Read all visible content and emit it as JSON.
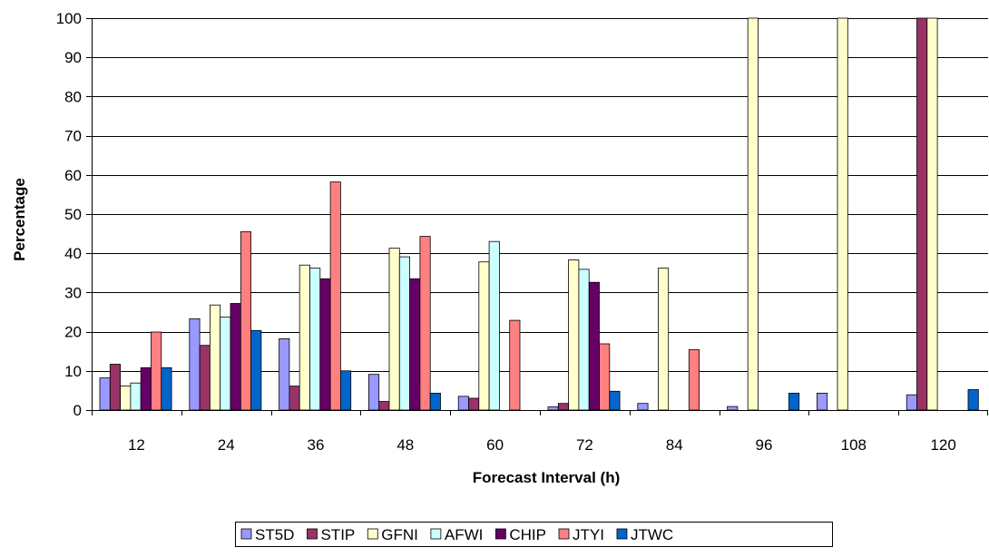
{
  "chart_data": {
    "type": "bar",
    "title": "",
    "xlabel": "Forecast Interval (h)",
    "ylabel": "Percentage",
    "ylim": [
      0,
      100
    ],
    "yticks": [
      0,
      10,
      20,
      30,
      40,
      50,
      60,
      70,
      80,
      90,
      100
    ],
    "grid": "horizontal",
    "legend_position": "bottom",
    "categories": [
      "12",
      "24",
      "36",
      "48",
      "60",
      "72",
      "84",
      "96",
      "108",
      "120"
    ],
    "series": [
      {
        "name": "ST5D",
        "color": "#9999ff",
        "values": [
          8.2,
          23.3,
          18.2,
          9.1,
          3.5,
          0.8,
          1.7,
          0.9,
          4.3,
          3.9
        ]
      },
      {
        "name": "STIP",
        "color": "#993366",
        "values": [
          11.7,
          16.5,
          6.1,
          2.2,
          3.0,
          1.7,
          0,
          0,
          0,
          100
        ]
      },
      {
        "name": "GFNI",
        "color": "#ffffcc",
        "values": [
          6.1,
          26.8,
          37.0,
          41.3,
          37.8,
          38.3,
          36.2,
          100,
          100,
          100
        ]
      },
      {
        "name": "AFWI",
        "color": "#ccffff",
        "values": [
          6.9,
          23.7,
          36.2,
          39.1,
          43.0,
          35.9,
          0,
          0,
          0,
          0
        ]
      },
      {
        "name": "CHIP",
        "color": "#660066",
        "values": [
          10.8,
          27.2,
          33.5,
          33.5,
          0,
          32.6,
          0,
          0,
          0,
          0
        ]
      },
      {
        "name": "JTYI",
        "color": "#ff8080",
        "values": [
          19.9,
          45.5,
          58.2,
          44.3,
          22.9,
          16.9,
          15.4,
          0,
          0,
          0
        ]
      },
      {
        "name": "JTWC",
        "color": "#0066cc",
        "values": [
          10.8,
          20.3,
          10.0,
          4.3,
          0,
          4.8,
          0,
          4.3,
          0,
          5.2
        ]
      }
    ]
  }
}
